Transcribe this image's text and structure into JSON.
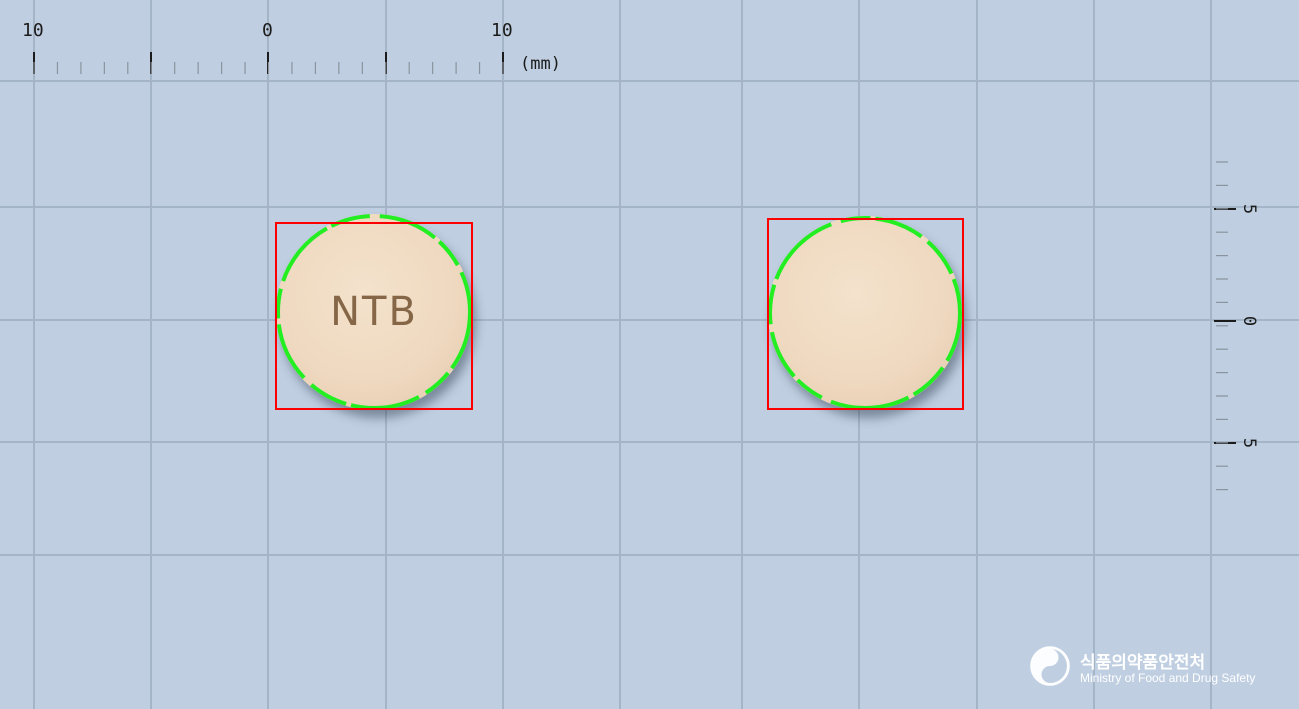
{
  "ruler_top": {
    "labels": [
      "10",
      "0",
      "10"
    ],
    "unit": "(mm)"
  },
  "ruler_right": {
    "labels": [
      "5",
      "0",
      "5"
    ]
  },
  "pills": [
    {
      "imprint": "NTB",
      "side": "front"
    },
    {
      "imprint": "",
      "side": "back"
    }
  ],
  "colors": {
    "background": "#bfcfe1",
    "grid": "#a4b4c6",
    "bbox": "#ff0000",
    "contour": "#22ee22",
    "pill": "#efd9c0"
  },
  "logo": {
    "korean": "식품의약품안전처",
    "english": "Ministry of Food and Drug Safety",
    "emblem_icon": "taegeuk-swirl-icon"
  }
}
